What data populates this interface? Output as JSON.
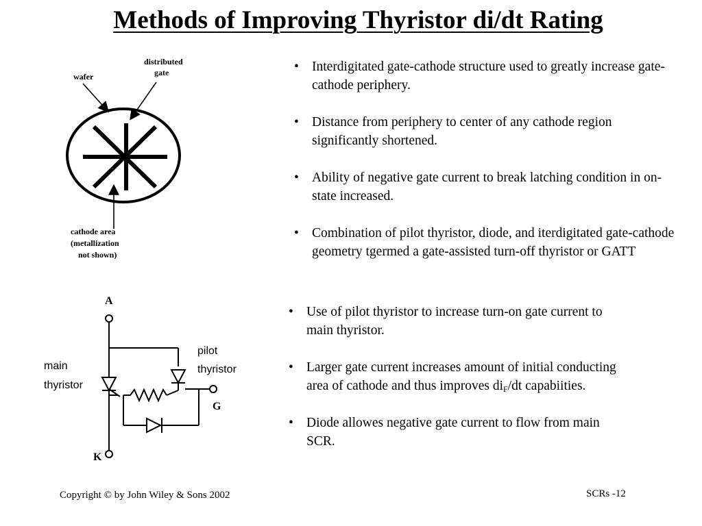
{
  "title": "Methods of Improving Thyristor di/dt Rating",
  "top_bullets": [
    "Interdigitated gate-cathode structure used to greatly increase gate-cathode periphery.",
    "Distance from periphery to center of any cathode region significantly shortened.",
    "Ability of negative gate current to break latching condition in on-state increased.",
    "Combination of pilot thyristor, diode, and iterdigitated gate-cathode geometry tgermed a gate-assisted turn-off thyristor or GATT"
  ],
  "bottom_bullets": {
    "b1": "Use of pilot thyristor to increase turn-on gate current  to main thyristor.",
    "b2_text": "Larger gate current increases amount of initial conducting area of cathode and thus improves di",
    "b2_sub": "F",
    "b2_tail": "/dt capabiities.",
    "b3": "Diode allowes negative gate current to flow from main SCR."
  },
  "wafer_diagram": {
    "label_wafer": "wafer",
    "label_distributed": "distributed",
    "label_gate": "gate",
    "label_cathode_1": "cathode area",
    "label_cathode_2": "(metallization",
    "label_cathode_3": "not shown)"
  },
  "circuit": {
    "terminal_a": "A",
    "terminal_k": "K",
    "terminal_g": "G",
    "label_main_1": "main",
    "label_main_2": "thyristor",
    "label_pilot_1": "pilot",
    "label_pilot_2": "thyristor"
  },
  "footer": {
    "copyright": "Copyright © by John Wiley & Sons 2002",
    "page": "SCRs -12"
  }
}
